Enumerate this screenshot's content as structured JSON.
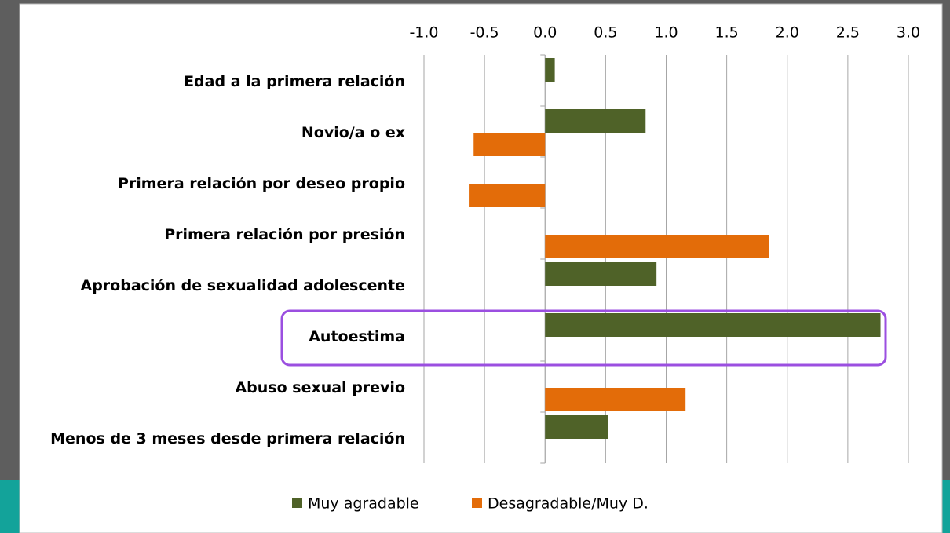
{
  "chart_data": {
    "type": "bar",
    "orientation": "horizontal",
    "categories": [
      "Edad a la primera relación",
      "Novio/a  o ex",
      "Primera relación por deseo propio",
      "Primera relación por presión",
      "Aprobación de sexualidad adolescente",
      "Autoestima",
      "Abuso sexual previo",
      "Menos de 3 meses desde primera relación"
    ],
    "series": [
      {
        "name": "Muy agradable",
        "color": "#4f6228",
        "values": [
          0.08,
          0.83,
          null,
          null,
          0.92,
          2.77,
          null,
          0.52
        ]
      },
      {
        "name": "Desagradable/Muy D.",
        "color": "#e36c09",
        "values": [
          null,
          -0.59,
          -0.63,
          1.85,
          null,
          null,
          1.16,
          null
        ]
      }
    ],
    "xlim": [
      -1,
      3
    ],
    "xticks": [
      {
        "value": -1,
        "label": "-1.0"
      },
      -0.5,
      {
        "value": 0,
        "label": "0.0"
      },
      0.5,
      {
        "value": 1,
        "label": "1.0"
      },
      1.5,
      {
        "value": 2,
        "label": "2.0"
      },
      2.5,
      {
        "value": 3,
        "label": "3.0"
      }
    ],
    "grid": true,
    "legend": "bottom"
  }
}
